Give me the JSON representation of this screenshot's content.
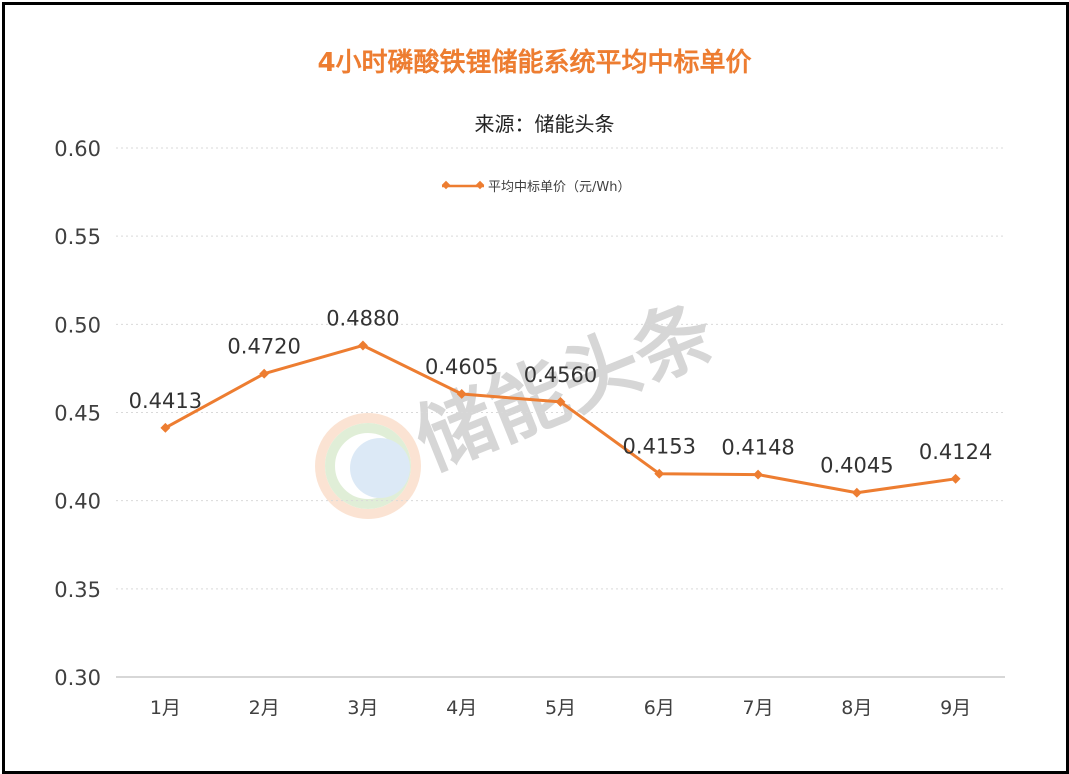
{
  "chart_data": {
    "type": "line",
    "title": "4小时磷酸铁锂储能系统平均中标单价",
    "subtitle": "来源：储能头条",
    "categories": [
      "1月",
      "2月",
      "3月",
      "4月",
      "5月",
      "6月",
      "7月",
      "8月",
      "9月"
    ],
    "series": [
      {
        "name": "平均中标单价（元/Wh）",
        "values": [
          0.4413,
          0.472,
          0.488,
          0.4605,
          0.456,
          0.4153,
          0.4148,
          0.4045,
          0.4124
        ],
        "labels": [
          "0.4413",
          "0.4720",
          "0.4880",
          "0.4605",
          "0.4560",
          "0.4153",
          "0.4148",
          "0.4045",
          "0.4124"
        ],
        "color": "#ED7D31"
      }
    ],
    "ylim": [
      0.3,
      0.6
    ],
    "yticks": [
      "0.30",
      "0.35",
      "0.40",
      "0.45",
      "0.50",
      "0.55",
      "0.60"
    ],
    "grid": true,
    "legend_position": "top"
  },
  "watermark": {
    "text": "储能头条",
    "logo_icon": "ring-logo-icon"
  },
  "colors": {
    "line": "#ED7D31",
    "title": "#ED7D31",
    "grid": "#D9D9D9",
    "axis_text": "#404040"
  }
}
